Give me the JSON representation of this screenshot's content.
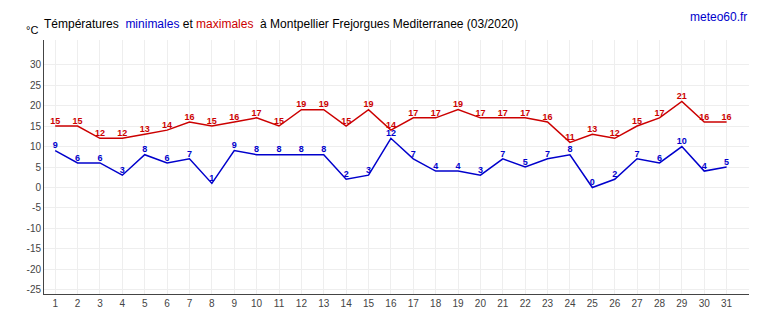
{
  "chart_data": {
    "type": "line",
    "title": "Témpératures  minimales et maximales  à Montpellier Frejorgues Mediterranee (03/2020)",
    "ylabel": "°C",
    "x": [
      1,
      2,
      3,
      4,
      5,
      6,
      7,
      8,
      9,
      10,
      11,
      12,
      13,
      14,
      15,
      16,
      17,
      18,
      19,
      20,
      21,
      22,
      23,
      24,
      25,
      26,
      27,
      28,
      29,
      30,
      31
    ],
    "series": [
      {
        "name": "minimales",
        "color": "#0000cc",
        "values": [
          9,
          6,
          6,
          3,
          8,
          6,
          7,
          1,
          9,
          8,
          8,
          8,
          8,
          2,
          3,
          12,
          7,
          4,
          4,
          3,
          7,
          5,
          7,
          8,
          0,
          2,
          7,
          6,
          10,
          4,
          5
        ]
      },
      {
        "name": "maximales",
        "color": "#cc0000",
        "values": [
          15,
          15,
          12,
          12,
          13,
          14,
          16,
          15,
          16,
          17,
          15,
          19,
          19,
          15,
          19,
          14,
          17,
          17,
          19,
          17,
          17,
          17,
          16,
          11,
          13,
          12,
          15,
          17,
          21,
          16,
          16
        ]
      }
    ],
    "xlim": [
      0.5,
      32
    ],
    "xticks": [
      1,
      2,
      3,
      4,
      5,
      6,
      7,
      8,
      9,
      10,
      11,
      12,
      13,
      14,
      15,
      16,
      17,
      18,
      19,
      20,
      21,
      22,
      23,
      24,
      25,
      26,
      27,
      28,
      29,
      30,
      31
    ],
    "ylim": [
      -26,
      36
    ],
    "yticks": [
      -25,
      -20,
      -15,
      -10,
      -5,
      0,
      5,
      10,
      15,
      20,
      25,
      30
    ],
    "grid": true,
    "data_labels": true,
    "annotations": [
      {
        "text": "meteo60.fr",
        "color": "#0000cc"
      }
    ]
  }
}
